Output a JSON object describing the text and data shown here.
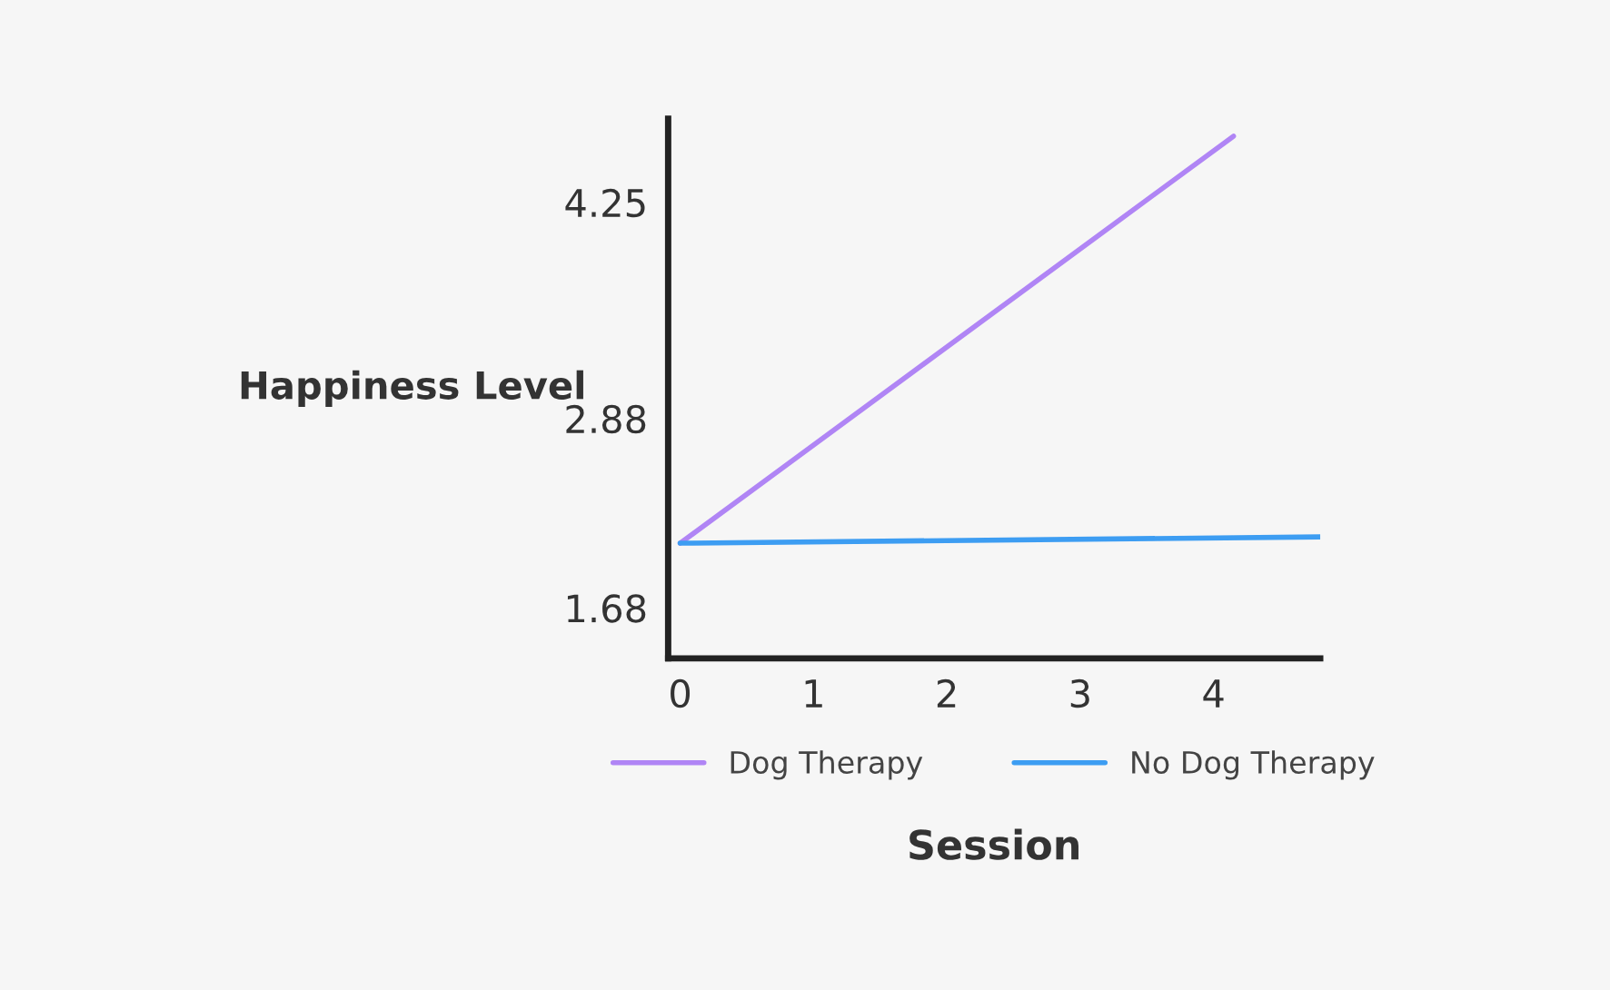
{
  "chart_data": {
    "type": "line",
    "xlabel": "Session",
    "ylabel": "Happiness Level",
    "series": [
      {
        "name": "Dog Therapy",
        "color": "#b085f5",
        "x": [
          0,
          4.15
        ],
        "values": [
          2.09,
          4.67
        ]
      },
      {
        "name": "No Dog Therapy",
        "color": "#3d9df2",
        "x": [
          0,
          4.8
        ],
        "values": [
          2.09,
          2.13
        ]
      }
    ],
    "xlim": [
      -0.09,
      4.8
    ],
    "xticks": [
      0,
      1,
      2,
      3,
      4
    ],
    "ylim": [
      1.36,
      4.78
    ],
    "yticks": [
      1.68,
      2.88,
      4.25
    ],
    "grid": false,
    "legend": "bottom",
    "marker": "none",
    "line_style": "solid"
  }
}
